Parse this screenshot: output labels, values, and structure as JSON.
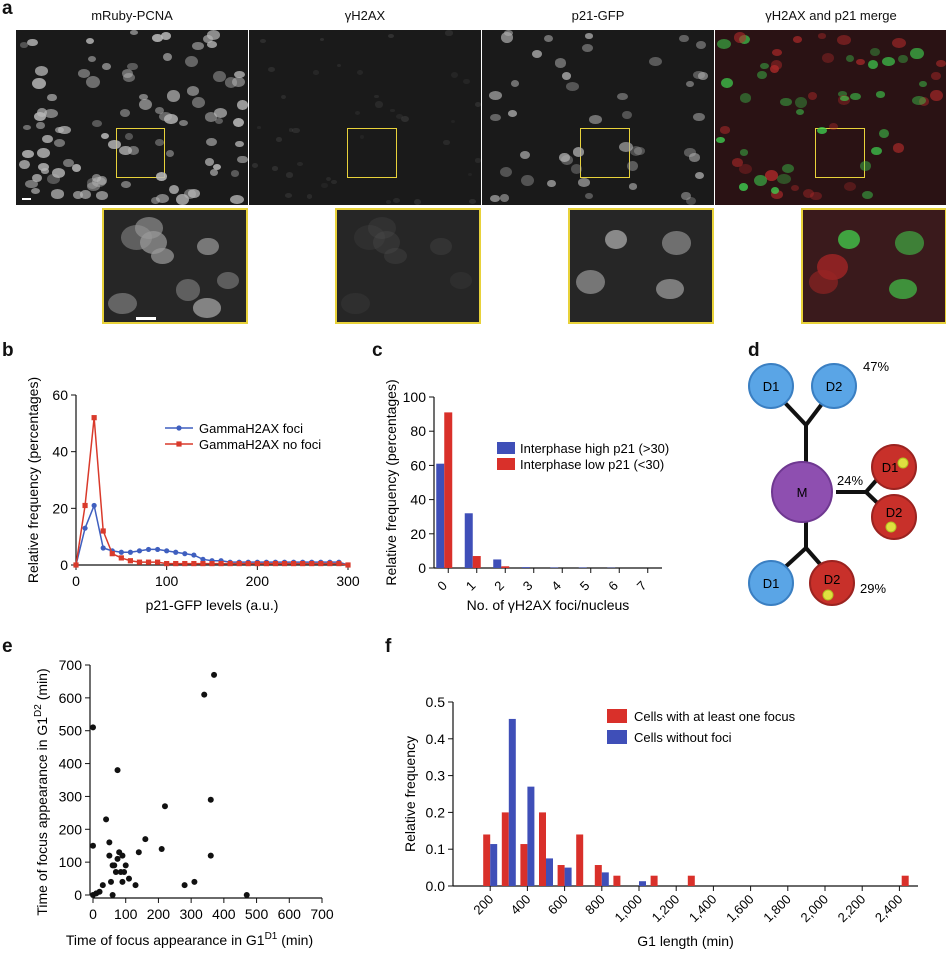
{
  "panel_a": {
    "label": "a",
    "channels": [
      "mRuby-PCNA",
      "γH2AX",
      "p21-GFP",
      "γH2AX and p21 merge"
    ]
  },
  "panel_d": {
    "label": "d",
    "mother": "M",
    "pct_top": "47%",
    "pct_mid": "24%",
    "pct_bot": "29%",
    "top_daughters": [
      "D1",
      "D2"
    ],
    "mid_daughters": [
      "D1",
      "D2"
    ],
    "bot_daughters": [
      "D1",
      "D2"
    ]
  },
  "chart_data": [
    {
      "panel": "b",
      "type": "line",
      "xlabel": "p21-GFP levels (a.u.)",
      "ylabel": "Relative frequency (percentages)",
      "xlim": [
        0,
        300
      ],
      "ylim": [
        0,
        60
      ],
      "xticks": [
        "0",
        "100",
        "200",
        "300"
      ],
      "yticks": [
        "0",
        "20",
        "40",
        "60"
      ],
      "legend": "top-right",
      "series": [
        {
          "name": "GammaH2AX foci",
          "color": "#3f5fbf",
          "x": [
            0,
            10,
            20,
            30,
            40,
            50,
            60,
            70,
            80,
            90,
            100,
            110,
            120,
            130,
            140,
            150,
            160,
            170,
            180,
            190,
            200,
            210,
            220,
            230,
            240,
            250,
            260,
            270,
            280,
            290,
            300
          ],
          "y": [
            0,
            13,
            21,
            6,
            5,
            4.5,
            4.5,
            5,
            5.5,
            5.5,
            5,
            4.5,
            4,
            3.5,
            2,
            1.5,
            1.5,
            1,
            1,
            1,
            1,
            1,
            1,
            1,
            1,
            1,
            1,
            1,
            1,
            1,
            0
          ]
        },
        {
          "name": "GammaH2AX no foci",
          "color": "#d93a2b",
          "x": [
            0,
            10,
            20,
            30,
            40,
            50,
            60,
            70,
            80,
            90,
            100,
            110,
            120,
            130,
            140,
            150,
            160,
            170,
            180,
            190,
            200,
            210,
            220,
            230,
            240,
            250,
            260,
            270,
            280,
            290,
            300
          ],
          "y": [
            0,
            21,
            52,
            12,
            4,
            2.5,
            1.5,
            1,
            1,
            1,
            0.5,
            0.5,
            0.5,
            0.5,
            0.5,
            0.5,
            0.5,
            0.5,
            0.5,
            0.5,
            0.5,
            0.5,
            0.5,
            0.5,
            0.5,
            0.5,
            0.5,
            0.5,
            0.5,
            0.5,
            0
          ]
        }
      ]
    },
    {
      "panel": "c",
      "type": "bar",
      "xlabel": "No. of γH2AX foci/nucleus",
      "ylabel": "Relative frequency (percentages)",
      "ylim": [
        0,
        100
      ],
      "yticks": [
        "0",
        "20",
        "40",
        "60",
        "80",
        "100"
      ],
      "categories": [
        "0",
        "1",
        "2",
        "3",
        "4",
        "5",
        "6",
        "7"
      ],
      "legend": "center-right",
      "series": [
        {
          "name": "Interphase high p21 (>30)",
          "color": "#3f4fb8",
          "values": [
            61,
            32,
            5,
            0.5,
            0.3,
            0.3,
            0.2,
            0
          ]
        },
        {
          "name": "Interphase low p21 (<30)",
          "color": "#d9302a",
          "values": [
            91,
            7,
            1,
            0,
            0,
            0,
            0,
            0
          ]
        }
      ]
    },
    {
      "panel": "e",
      "type": "scatter",
      "xlabel_main": "Time of focus appearance in G1",
      "xlabel_sup": "D1",
      "xlabel_end": " (min)",
      "ylabel_main": "Time of focus appearance in G1",
      "ylabel_sup": "D2",
      "ylabel_end": " (min)",
      "xlim": [
        0,
        700
      ],
      "ylim": [
        0,
        700
      ],
      "xticks": [
        "0",
        "100",
        "200",
        "300",
        "400",
        "500",
        "600",
        "700"
      ],
      "yticks": [
        "0",
        "100",
        "200",
        "300",
        "400",
        "500",
        "600",
        "700"
      ],
      "points": [
        [
          0,
          510
        ],
        [
          0,
          150
        ],
        [
          0,
          0
        ],
        [
          10,
          5
        ],
        [
          20,
          10
        ],
        [
          30,
          30
        ],
        [
          40,
          230
        ],
        [
          50,
          160
        ],
        [
          50,
          120
        ],
        [
          55,
          40
        ],
        [
          60,
          0
        ],
        [
          60,
          90
        ],
        [
          65,
          90
        ],
        [
          70,
          70
        ],
        [
          75,
          110
        ],
        [
          75,
          380
        ],
        [
          80,
          130
        ],
        [
          85,
          70
        ],
        [
          90,
          120
        ],
        [
          90,
          40
        ],
        [
          95,
          70
        ],
        [
          100,
          90
        ],
        [
          110,
          50
        ],
        [
          130,
          30
        ],
        [
          140,
          130
        ],
        [
          160,
          170
        ],
        [
          210,
          140
        ],
        [
          220,
          270
        ],
        [
          280,
          30
        ],
        [
          310,
          40
        ],
        [
          340,
          610
        ],
        [
          360,
          290
        ],
        [
          360,
          120
        ],
        [
          370,
          670
        ],
        [
          470,
          0
        ]
      ]
    },
    {
      "panel": "f",
      "type": "bar",
      "xlabel": "G1 length (min)",
      "ylabel": "Relative frequency",
      "ylim": [
        0,
        0.5
      ],
      "yticks": [
        "0.0",
        "0.1",
        "0.2",
        "0.3",
        "0.4",
        "0.5"
      ],
      "xticks": [
        "200",
        "400",
        "600",
        "800",
        "1,000",
        "1,200",
        "1,400",
        "1,600",
        "1,800",
        "2,000",
        "2,200",
        "2,400"
      ],
      "xlim": [
        0,
        2500
      ],
      "legend": "top-center",
      "bin_centers": [
        200,
        300,
        400,
        500,
        600,
        700,
        800,
        900,
        1000,
        1100,
        1300,
        2450
      ],
      "series": [
        {
          "name": "Cells with at least one focus",
          "color": "#d9302a",
          "values": [
            0.14,
            0.2,
            0.114,
            0.2,
            0.057,
            0.14,
            0.057,
            0.028,
            0,
            0.028,
            0.028,
            0.028
          ]
        },
        {
          "name": "Cells without foci",
          "color": "#3f4fb8",
          "values": [
            0.114,
            0.454,
            0.27,
            0.075,
            0.05,
            0,
            0.037,
            0,
            0.013,
            0,
            0,
            0
          ]
        }
      ]
    }
  ]
}
